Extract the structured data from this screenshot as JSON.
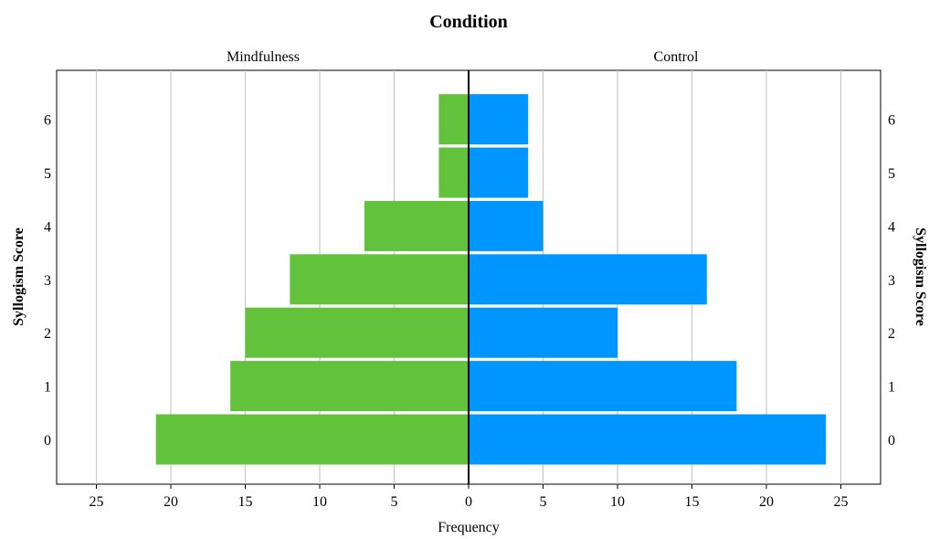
{
  "chart_data": {
    "type": "bar",
    "orientation": "horizontal",
    "layout": "population-pyramid",
    "title": "Condition",
    "xlabel": "Frequency",
    "ylabel_left": "Syllogism Score",
    "ylabel_right": "Syllogism Score",
    "categories": [
      "0",
      "1",
      "2",
      "3",
      "4",
      "5",
      "6"
    ],
    "x_ticks": [
      "25",
      "20",
      "15",
      "10",
      "5",
      "0",
      "5",
      "10",
      "15",
      "20",
      "25"
    ],
    "xlim": [
      -28,
      28
    ],
    "grid": "vertical",
    "series": [
      {
        "name": "Mindfulness",
        "side": "left",
        "color": "#62c23b",
        "values": [
          21,
          16,
          15,
          12,
          7,
          2,
          2
        ]
      },
      {
        "name": "Control",
        "side": "right",
        "color": "#0096ff",
        "values": [
          24,
          18,
          10,
          16,
          5,
          4,
          4
        ]
      }
    ]
  }
}
